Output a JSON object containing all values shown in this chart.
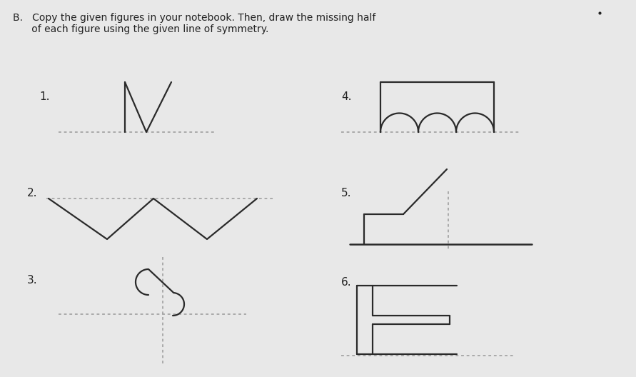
{
  "bg_color": "#e8e8e8",
  "line_color": "#2a2a2a",
  "dash_color": "#999999",
  "text_color": "#222222",
  "fig_width": 8.91,
  "fig_height": 5.28,
  "dpi": 100,
  "title_line1": "B.   Copy the given figures in your notebook. Then, draw the missing half",
  "title_line2": "      of each figure using the given line of symmetry.",
  "labels": [
    "1.",
    "2.",
    "3.",
    "4.",
    "5.",
    "6."
  ]
}
